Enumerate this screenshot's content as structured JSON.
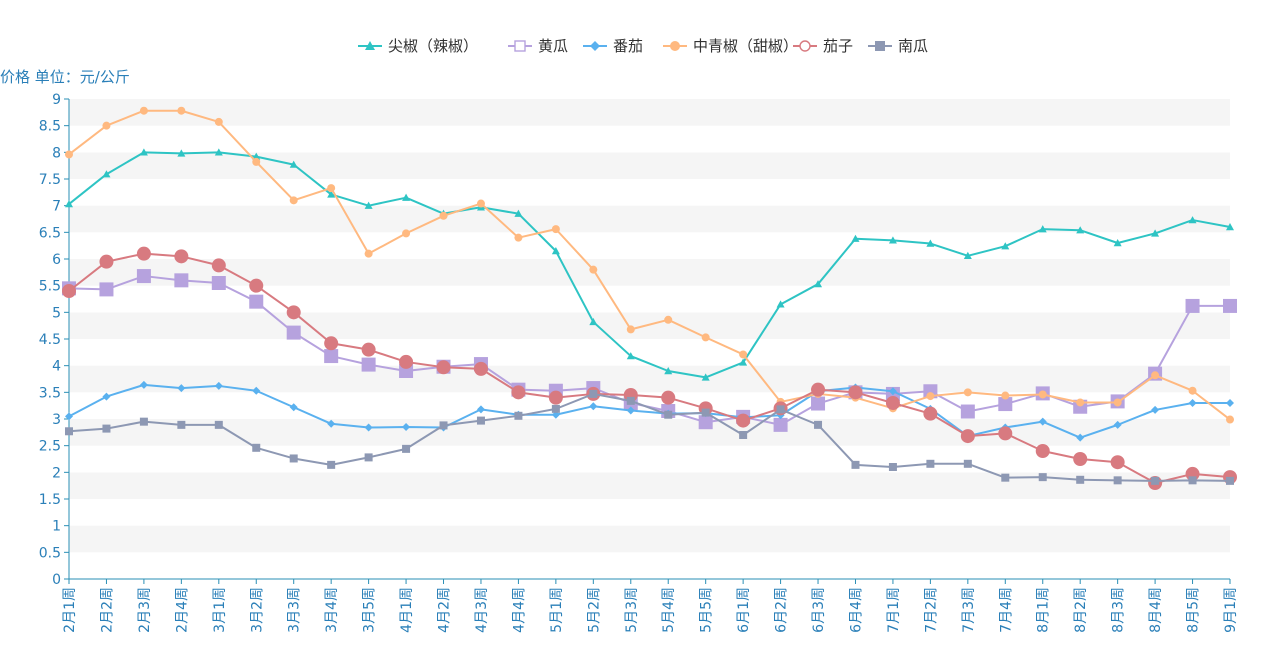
{
  "chart_data": {
    "type": "line",
    "ylabel": "价格 单位：元/公斤",
    "ylim": [
      0,
      9
    ],
    "yticks": [
      0,
      0.5,
      1,
      1.5,
      2,
      2.5,
      3,
      3.5,
      4,
      4.5,
      5,
      5.5,
      6,
      6.5,
      7,
      7.5,
      8,
      8.5,
      9
    ],
    "ytick_labels": [
      "0",
      "0.5",
      "1",
      "1.5",
      "2",
      "2.5",
      "3",
      "3.5",
      "4",
      "4.5",
      "5",
      "5.5",
      "6",
      "6.5",
      "7",
      "7.5",
      "8",
      "8.5",
      "9"
    ],
    "legend_position": "top-center",
    "grid": "alternating horizontal bands",
    "categories": [
      "2月1周",
      "2月2周",
      "2月3周",
      "2月4周",
      "3月1周",
      "3月2周",
      "3月3周",
      "3月4周",
      "3月5周",
      "4月1周",
      "4月2周",
      "4月3周",
      "4月4周",
      "5月1周",
      "5月2周",
      "5月3周",
      "5月4周",
      "5月5周",
      "6月1周",
      "6月2周",
      "6月3周",
      "6月4周",
      "7月1周",
      "7月2周",
      "7月3周",
      "7月4周",
      "8月1周",
      "8月2周",
      "8月3周",
      "8月4周",
      "8月5周",
      "9月1周"
    ],
    "series": [
      {
        "name": "尖椒（辣椒）",
        "color": "#2ec4c4",
        "marker": "triangle",
        "values": [
          7.03,
          7.59,
          8.0,
          7.98,
          8.0,
          7.92,
          7.77,
          7.21,
          7.0,
          7.15,
          6.85,
          6.97,
          6.85,
          6.15,
          4.82,
          4.18,
          3.9,
          3.78,
          4.06,
          5.15,
          5.53,
          6.38,
          6.35,
          6.29,
          6.06,
          6.24,
          6.56,
          6.54,
          6.3,
          6.48,
          6.73,
          6.6
        ]
      },
      {
        "name": "黄瓜",
        "color": "#b6a2de",
        "marker": "square-hollow",
        "values": [
          5.45,
          5.43,
          5.68,
          5.6,
          5.55,
          5.2,
          4.62,
          4.18,
          4.02,
          3.9,
          3.98,
          4.03,
          3.55,
          3.53,
          3.58,
          3.3,
          3.15,
          2.94,
          3.04,
          2.89,
          3.29,
          3.5,
          3.47,
          3.52,
          3.14,
          3.28,
          3.48,
          3.23,
          3.33,
          3.85,
          5.12,
          5.12
        ]
      },
      {
        "name": "番茄",
        "color": "#5ab1ef",
        "marker": "diamond",
        "values": [
          3.05,
          3.42,
          3.64,
          3.58,
          3.62,
          3.53,
          3.22,
          2.91,
          2.84,
          2.85,
          2.84,
          3.18,
          3.08,
          3.08,
          3.24,
          3.16,
          3.1,
          3.11,
          3.03,
          3.07,
          3.52,
          3.59,
          3.52,
          3.19,
          2.68,
          2.84,
          2.95,
          2.65,
          2.89,
          3.17,
          3.3,
          3.3
        ]
      },
      {
        "name": "中青椒（甜椒）",
        "color": "#ffb980",
        "marker": "circle",
        "values": [
          7.96,
          8.5,
          8.78,
          8.78,
          8.57,
          7.82,
          7.1,
          7.33,
          6.1,
          6.48,
          6.81,
          7.04,
          6.4,
          6.56,
          5.8,
          4.68,
          4.86,
          4.53,
          4.21,
          3.32,
          3.47,
          3.4,
          3.2,
          3.43,
          3.5,
          3.44,
          3.46,
          3.31,
          3.31,
          3.82,
          3.53,
          2.99
        ]
      },
      {
        "name": "茄子",
        "color": "#d87a80",
        "marker": "circle-hollow",
        "values": [
          5.4,
          5.95,
          6.1,
          6.05,
          5.88,
          5.5,
          5.0,
          4.42,
          4.3,
          4.07,
          3.97,
          3.94,
          3.5,
          3.4,
          3.47,
          3.45,
          3.4,
          3.2,
          2.97,
          3.2,
          3.55,
          3.5,
          3.3,
          3.1,
          2.68,
          2.73,
          2.4,
          2.25,
          2.19,
          1.8,
          1.97,
          1.91
        ]
      },
      {
        "name": "南瓜",
        "color": "#8d98b3",
        "marker": "square",
        "values": [
          2.77,
          2.82,
          2.95,
          2.89,
          2.89,
          2.46,
          2.26,
          2.14,
          2.28,
          2.44,
          2.88,
          2.97,
          3.06,
          3.19,
          3.47,
          3.34,
          3.08,
          3.12,
          2.7,
          3.18,
          2.89,
          2.14,
          2.1,
          2.16,
          2.16,
          1.9,
          1.91,
          1.86,
          1.85,
          1.84,
          1.85,
          1.84
        ]
      }
    ]
  }
}
